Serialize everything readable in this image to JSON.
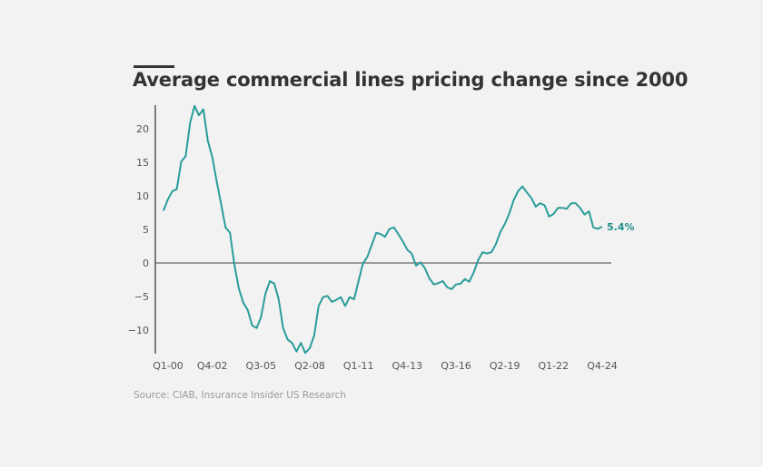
{
  "chart_data": {
    "type": "line",
    "title": "Average commercial lines pricing change since 2000",
    "source": "Source: CIAB, Insurance Insider US Research",
    "xlabel": "",
    "ylabel": "",
    "x_start_quarter": "Q1-00",
    "x_end_quarter": "Q4-24",
    "x_tick_labels": [
      "Q1-00",
      "Q4-02",
      "Q3-05",
      "Q2-08",
      "Q1-11",
      "Q4-13",
      "Q3-16",
      "Q2-19",
      "Q1-22",
      "Q4-24"
    ],
    "x_tick_index": [
      0,
      11,
      22,
      33,
      44,
      55,
      66,
      77,
      88,
      99
    ],
    "y_ticks": [
      20,
      15,
      10,
      5,
      0,
      -5,
      -10
    ],
    "ylim": [
      -13.5,
      23.5
    ],
    "grid": false,
    "zero_line": true,
    "series": [
      {
        "name": "Average commercial lines pricing change (%)",
        "color": "#2a9d9a",
        "values": [
          7.8,
          9.5,
          10.7,
          11.0,
          15.1,
          15.9,
          20.9,
          23.4,
          22.0,
          22.9,
          18.2,
          15.8,
          12.2,
          8.8,
          5.3,
          4.5,
          -0.3,
          -3.8,
          -5.9,
          -7.0,
          -9.3,
          -9.7,
          -8.1,
          -4.6,
          -2.7,
          -3.1,
          -5.4,
          -9.7,
          -11.4,
          -11.9,
          -13.2,
          -11.9,
          -13.4,
          -12.7,
          -10.8,
          -6.4,
          -5.1,
          -4.9,
          -5.8,
          -5.5,
          -5.1,
          -6.4,
          -5.1,
          -5.4,
          -2.7,
          -0.1,
          0.9,
          2.7,
          4.5,
          4.3,
          3.9,
          5.1,
          5.3,
          4.3,
          3.2,
          2.0,
          1.4,
          -0.4,
          0.1,
          -0.8,
          -2.3,
          -3.2,
          -3.0,
          -2.7,
          -3.6,
          -3.9,
          -3.2,
          -3.1,
          -2.4,
          -2.8,
          -1.4,
          0.4,
          1.6,
          1.4,
          1.6,
          2.8,
          4.6,
          5.8,
          7.3,
          9.3,
          10.7,
          11.4,
          10.5,
          9.7,
          8.4,
          8.9,
          8.6,
          6.9,
          7.3,
          8.2,
          8.2,
          8.1,
          8.9,
          8.9,
          8.2,
          7.2,
          7.7,
          5.3,
          5.1,
          5.4
        ]
      }
    ],
    "annotations": [
      {
        "label": "5.4%",
        "at": "last-point",
        "color": "#1f8f8c"
      }
    ]
  }
}
